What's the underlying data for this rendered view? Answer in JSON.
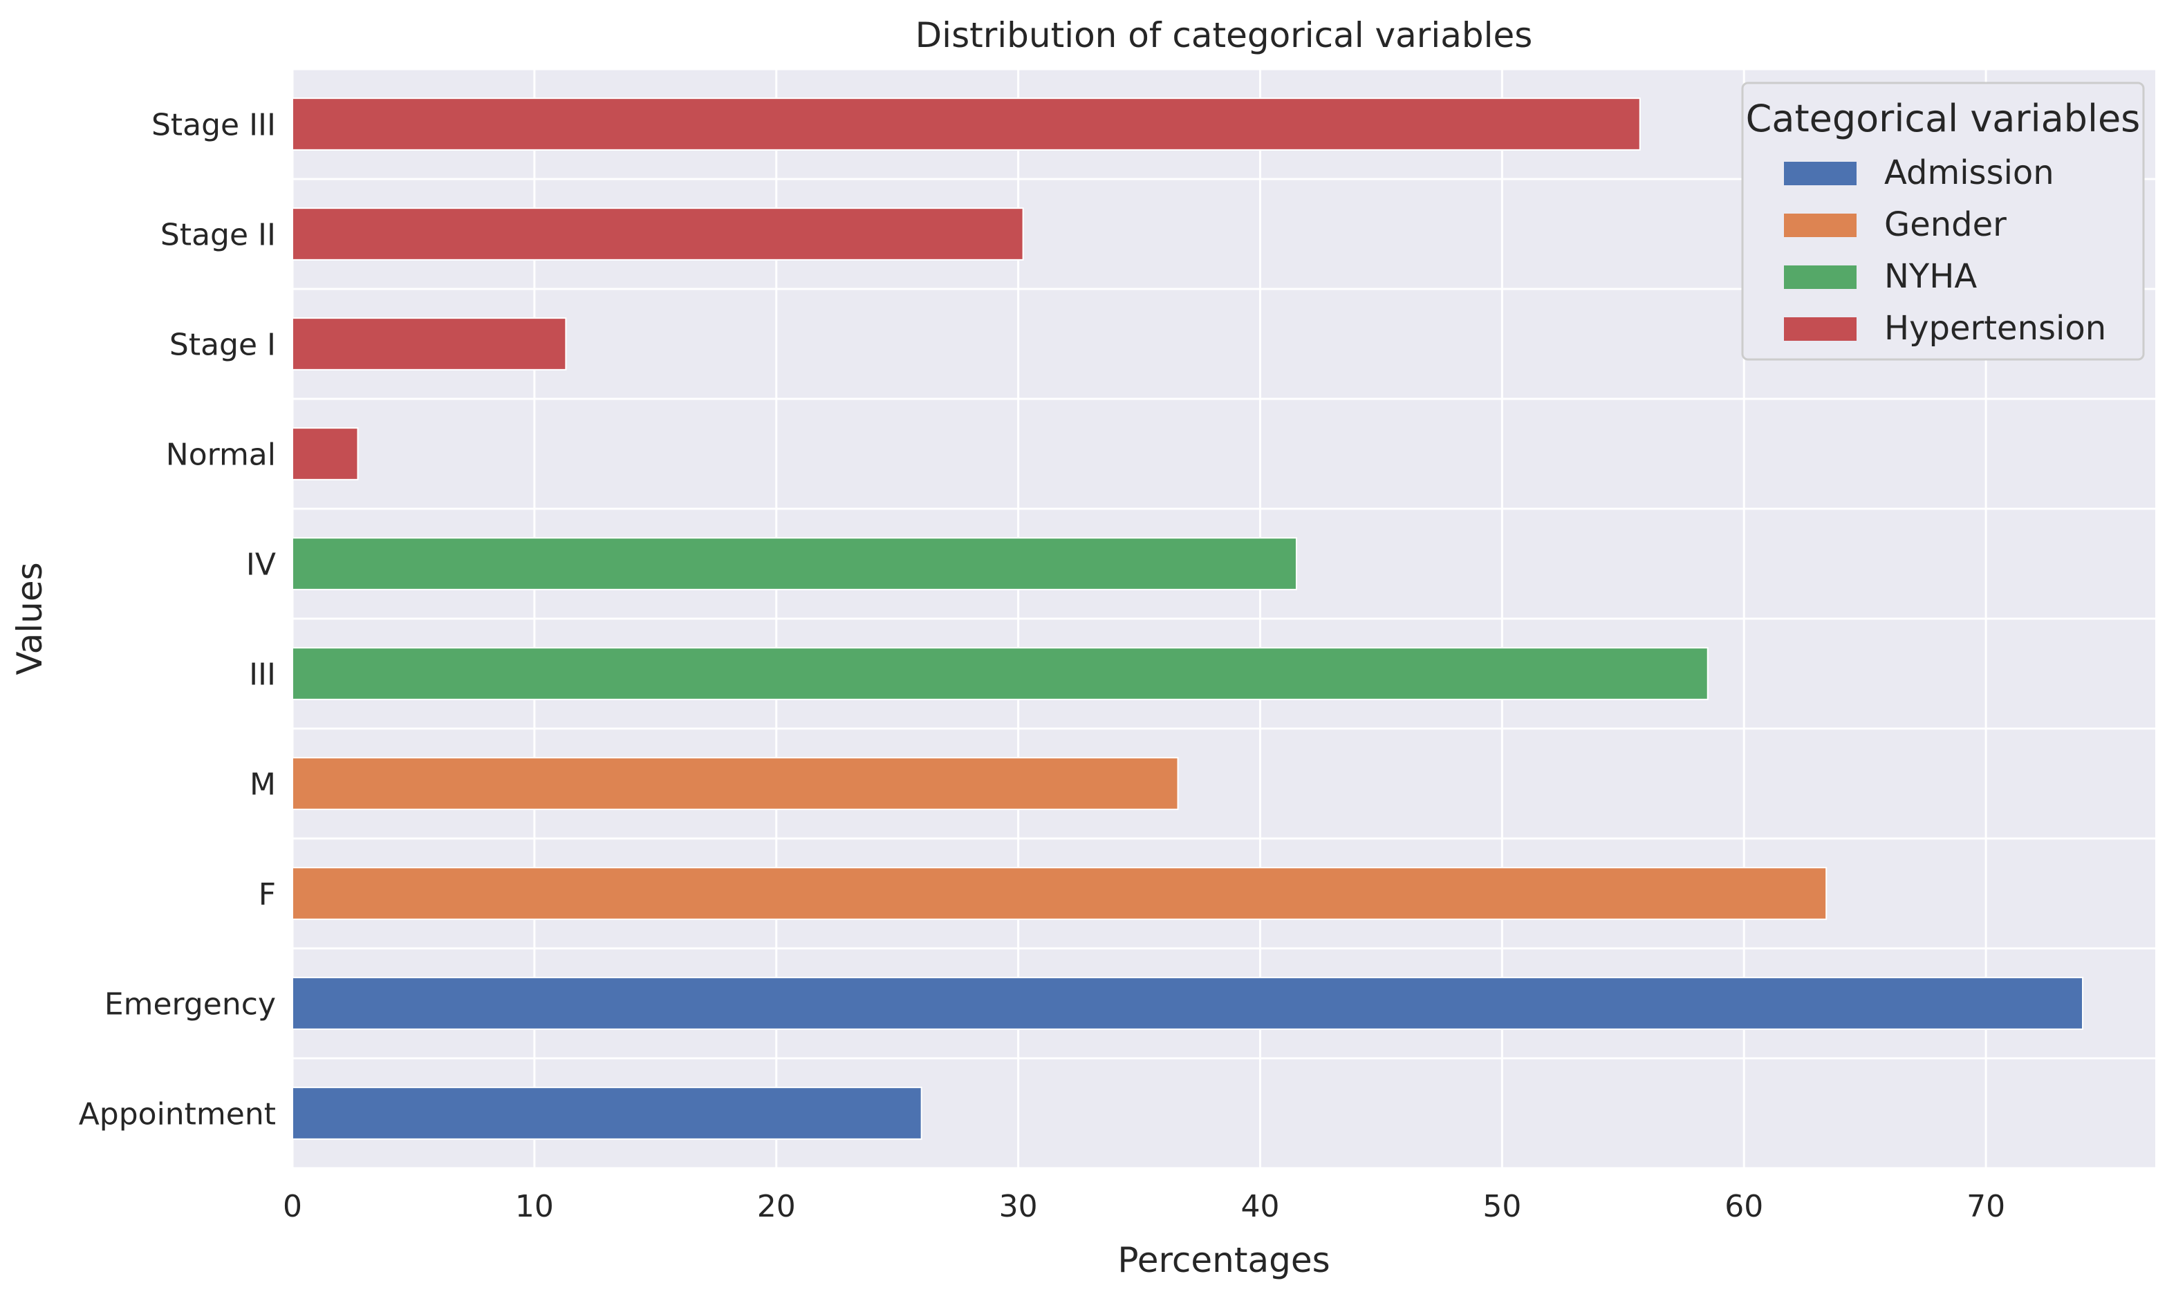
{
  "chart_data": {
    "type": "bar",
    "orientation": "horizontal",
    "title": "Distribution of categorical variables",
    "xlabel": "Percentages",
    "ylabel": "Values",
    "xlim": [
      0,
      77
    ],
    "xticks": [
      0,
      10,
      20,
      30,
      40,
      50,
      60,
      70
    ],
    "grid": true,
    "legend_position": "top-right",
    "legend_title": "Categorical variables",
    "series": [
      {
        "name": "Admission",
        "color": "#4c72b0"
      },
      {
        "name": "Gender",
        "color": "#dd8452"
      },
      {
        "name": "NYHA",
        "color": "#55a868"
      },
      {
        "name": "Hypertension",
        "color": "#c44e52"
      }
    ],
    "categories": [
      "Appointment",
      "Emergency",
      "F",
      "M",
      "III",
      "IV",
      "Normal",
      "Stage I",
      "Stage II",
      "Stage III"
    ],
    "bars": [
      {
        "category": "Appointment",
        "series": "Admission",
        "value": 26.0
      },
      {
        "category": "Emergency",
        "series": "Admission",
        "value": 74.0
      },
      {
        "category": "F",
        "series": "Gender",
        "value": 63.4
      },
      {
        "category": "M",
        "series": "Gender",
        "value": 36.6
      },
      {
        "category": "III",
        "series": "NYHA",
        "value": 58.5
      },
      {
        "category": "IV",
        "series": "NYHA",
        "value": 41.5
      },
      {
        "category": "Normal",
        "series": "Hypertension",
        "value": 2.7
      },
      {
        "category": "Stage I",
        "series": "Hypertension",
        "value": 11.3
      },
      {
        "category": "Stage II",
        "series": "Hypertension",
        "value": 30.2
      },
      {
        "category": "Stage III",
        "series": "Hypertension",
        "value": 55.7
      }
    ]
  },
  "style": {
    "plot_background": "#eaeaf2",
    "grid_color": "#ffffff",
    "legend_background": "#eaeaf2",
    "legend_border": "#cccccc"
  }
}
